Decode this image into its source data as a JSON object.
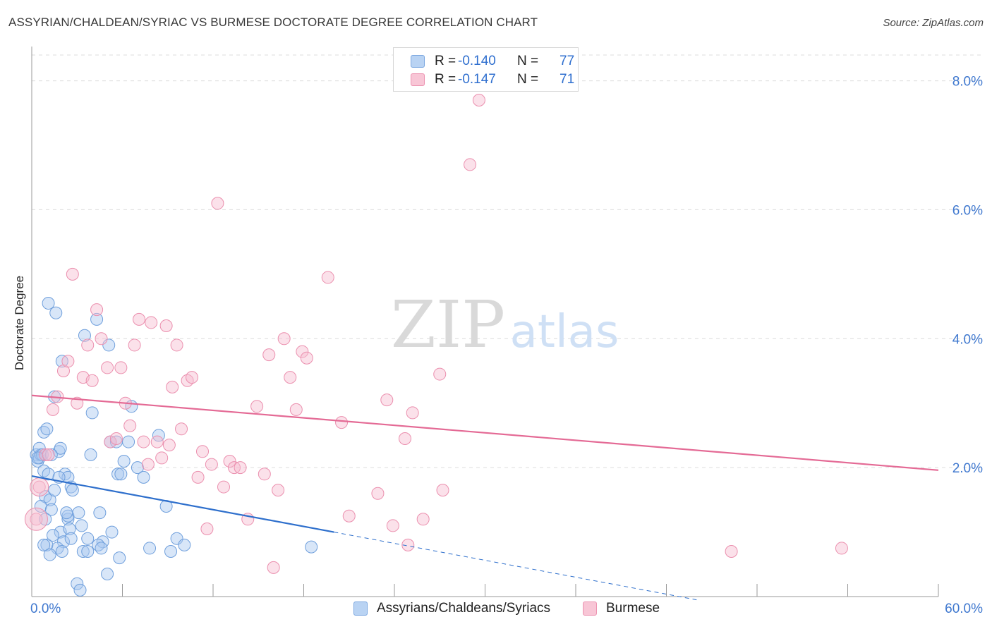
{
  "header": {
    "title": "ASSYRIAN/CHALDEAN/SYRIAC VS BURMESE DOCTORATE DEGREE CORRELATION CHART",
    "source": "Source: ZipAtlas.com"
  },
  "legend": {
    "series1": {
      "r_label": "R =",
      "r_value": "-0.140",
      "n_label": "N =",
      "n_value": "77"
    },
    "series2": {
      "r_label": "R =",
      "r_value": "-0.147",
      "n_label": "N =",
      "n_value": "71"
    }
  },
  "bottom_legend": {
    "series1": "Assyrians/Chaldeans/Syriacs",
    "series2": "Burmese"
  },
  "colors": {
    "blue_fill": "#a9c8ef",
    "blue_stroke": "#6f9fdc",
    "blue_line": "#2e6fcc",
    "pink_fill": "#f6bdd0",
    "pink_stroke": "#eb8fae",
    "pink_line": "#e46a95",
    "tick_label": "#3f78cf"
  },
  "chart_data": {
    "type": "scatter",
    "title": "ASSYRIAN/CHALDEAN/SYRIAC VS BURMESE DOCTORATE DEGREE CORRELATION CHART",
    "xlabel": "",
    "ylabel": "Doctorate Degree",
    "xlim": [
      0,
      60
    ],
    "ylim": [
      0,
      8.4
    ],
    "x_tick_labels": [
      "0.0%",
      "60.0%"
    ],
    "y_ticks": [
      2,
      4,
      6,
      8
    ],
    "y_tick_labels": [
      "2.0%",
      "4.0%",
      "6.0%",
      "8.0%"
    ],
    "watermark": {
      "part1": "ZIP",
      "part2": "atlas"
    },
    "series": [
      {
        "name": "Assyrians/Chaldeans/Syriacs",
        "color": "blue",
        "r": -0.14,
        "n": 77,
        "trend": {
          "x0": 0,
          "y0": 1.87,
          "x1": 20,
          "y1": 1.0,
          "dash_to_x": 44,
          "dash_to_y": -0.05
        },
        "points": [
          [
            0.3,
            2.2
          ],
          [
            0.4,
            2.1
          ],
          [
            0.5,
            2.15
          ],
          [
            0.6,
            2.2
          ],
          [
            0.5,
            2.3
          ],
          [
            0.8,
            2.55
          ],
          [
            1.0,
            2.6
          ],
          [
            0.7,
            2.2
          ],
          [
            1.1,
            4.55
          ],
          [
            1.6,
            4.4
          ],
          [
            2.0,
            3.65
          ],
          [
            1.5,
            3.1
          ],
          [
            0.8,
            1.95
          ],
          [
            1.1,
            1.9
          ],
          [
            0.9,
            1.55
          ],
          [
            1.2,
            1.5
          ],
          [
            0.6,
            1.4
          ],
          [
            1.3,
            1.35
          ],
          [
            1.5,
            1.65
          ],
          [
            1.8,
            2.25
          ],
          [
            1.9,
            2.3
          ],
          [
            2.2,
            1.9
          ],
          [
            2.4,
            1.85
          ],
          [
            2.6,
            1.7
          ],
          [
            2.7,
            1.65
          ],
          [
            1.9,
            1.0
          ],
          [
            2.1,
            0.85
          ],
          [
            1.7,
            0.75
          ],
          [
            1.0,
            0.8
          ],
          [
            0.8,
            0.8
          ],
          [
            1.2,
            0.65
          ],
          [
            1.4,
            0.95
          ],
          [
            2.0,
            0.7
          ],
          [
            2.4,
            1.2
          ],
          [
            2.5,
            1.05
          ],
          [
            2.6,
            0.9
          ],
          [
            2.4,
            1.25
          ],
          [
            3.1,
            1.3
          ],
          [
            3.3,
            1.1
          ],
          [
            3.4,
            0.7
          ],
          [
            3.5,
            4.05
          ],
          [
            4.3,
            4.3
          ],
          [
            4.0,
            2.85
          ],
          [
            3.9,
            2.2
          ],
          [
            4.5,
            1.3
          ],
          [
            4.7,
            0.85
          ],
          [
            5.1,
            3.9
          ],
          [
            5.2,
            2.4
          ],
          [
            5.6,
            2.4
          ],
          [
            5.7,
            1.9
          ],
          [
            5.9,
            1.9
          ],
          [
            6.1,
            2.1
          ],
          [
            6.4,
            2.4
          ],
          [
            6.6,
            2.95
          ],
          [
            5.3,
            1.0
          ],
          [
            5.0,
            0.35
          ],
          [
            5.8,
            0.6
          ],
          [
            4.4,
            0.8
          ],
          [
            3.7,
            0.7
          ],
          [
            3.0,
            0.2
          ],
          [
            3.2,
            0.1
          ],
          [
            7.0,
            2.0
          ],
          [
            7.4,
            1.85
          ],
          [
            8.4,
            2.5
          ],
          [
            8.9,
            1.4
          ],
          [
            9.2,
            0.7
          ],
          [
            9.6,
            0.9
          ],
          [
            7.8,
            0.75
          ],
          [
            10.1,
            0.8
          ],
          [
            18.5,
            0.77
          ],
          [
            0.4,
            2.15
          ],
          [
            1.8,
            1.85
          ],
          [
            2.3,
            1.3
          ],
          [
            3.7,
            0.9
          ],
          [
            4.6,
            0.75
          ],
          [
            1.3,
            2.2
          ],
          [
            0.9,
            1.2
          ]
        ]
      },
      {
        "name": "Burmese",
        "color": "pink",
        "r": -0.147,
        "n": 71,
        "trend": {
          "x0": 0,
          "y0": 3.12,
          "x1": 60,
          "y1": 1.96
        },
        "points": [
          [
            0.3,
            1.2
          ],
          [
            0.5,
            1.7
          ],
          [
            0.9,
            2.2
          ],
          [
            1.1,
            2.2
          ],
          [
            1.4,
            2.9
          ],
          [
            1.7,
            3.1
          ],
          [
            2.1,
            3.5
          ],
          [
            2.4,
            3.65
          ],
          [
            2.7,
            5.0
          ],
          [
            3.0,
            3.0
          ],
          [
            3.4,
            3.4
          ],
          [
            3.7,
            3.9
          ],
          [
            4.0,
            3.35
          ],
          [
            4.3,
            4.45
          ],
          [
            4.6,
            4.0
          ],
          [
            5.0,
            3.55
          ],
          [
            5.2,
            2.4
          ],
          [
            5.6,
            2.45
          ],
          [
            5.9,
            3.55
          ],
          [
            6.2,
            3.0
          ],
          [
            6.5,
            2.65
          ],
          [
            6.8,
            3.9
          ],
          [
            7.1,
            4.3
          ],
          [
            7.4,
            2.4
          ],
          [
            7.7,
            2.05
          ],
          [
            7.9,
            4.25
          ],
          [
            8.3,
            2.4
          ],
          [
            8.6,
            2.15
          ],
          [
            8.9,
            4.2
          ],
          [
            9.1,
            2.35
          ],
          [
            9.3,
            3.25
          ],
          [
            9.6,
            3.9
          ],
          [
            9.9,
            2.6
          ],
          [
            10.3,
            3.35
          ],
          [
            10.6,
            3.4
          ],
          [
            11.0,
            1.85
          ],
          [
            11.3,
            2.25
          ],
          [
            11.6,
            1.05
          ],
          [
            11.9,
            2.05
          ],
          [
            12.3,
            6.1
          ],
          [
            12.7,
            1.7
          ],
          [
            13.1,
            2.1
          ],
          [
            13.4,
            2.0
          ],
          [
            13.8,
            2.0
          ],
          [
            14.3,
            1.2
          ],
          [
            14.9,
            2.95
          ],
          [
            15.4,
            1.9
          ],
          [
            15.7,
            3.75
          ],
          [
            16.0,
            0.45
          ],
          [
            16.3,
            1.65
          ],
          [
            16.7,
            4.0
          ],
          [
            17.1,
            3.4
          ],
          [
            17.5,
            2.9
          ],
          [
            17.9,
            3.8
          ],
          [
            18.2,
            3.7
          ],
          [
            19.6,
            4.95
          ],
          [
            20.5,
            2.7
          ],
          [
            21.0,
            1.25
          ],
          [
            22.9,
            1.6
          ],
          [
            23.5,
            3.05
          ],
          [
            23.9,
            1.1
          ],
          [
            24.7,
            2.45
          ],
          [
            24.9,
            0.8
          ],
          [
            25.2,
            2.85
          ],
          [
            25.9,
            1.2
          ],
          [
            27.0,
            3.45
          ],
          [
            27.2,
            1.65
          ],
          [
            29.0,
            6.7
          ],
          [
            29.6,
            7.7
          ],
          [
            46.3,
            0.7
          ],
          [
            53.6,
            0.75
          ]
        ]
      }
    ]
  }
}
